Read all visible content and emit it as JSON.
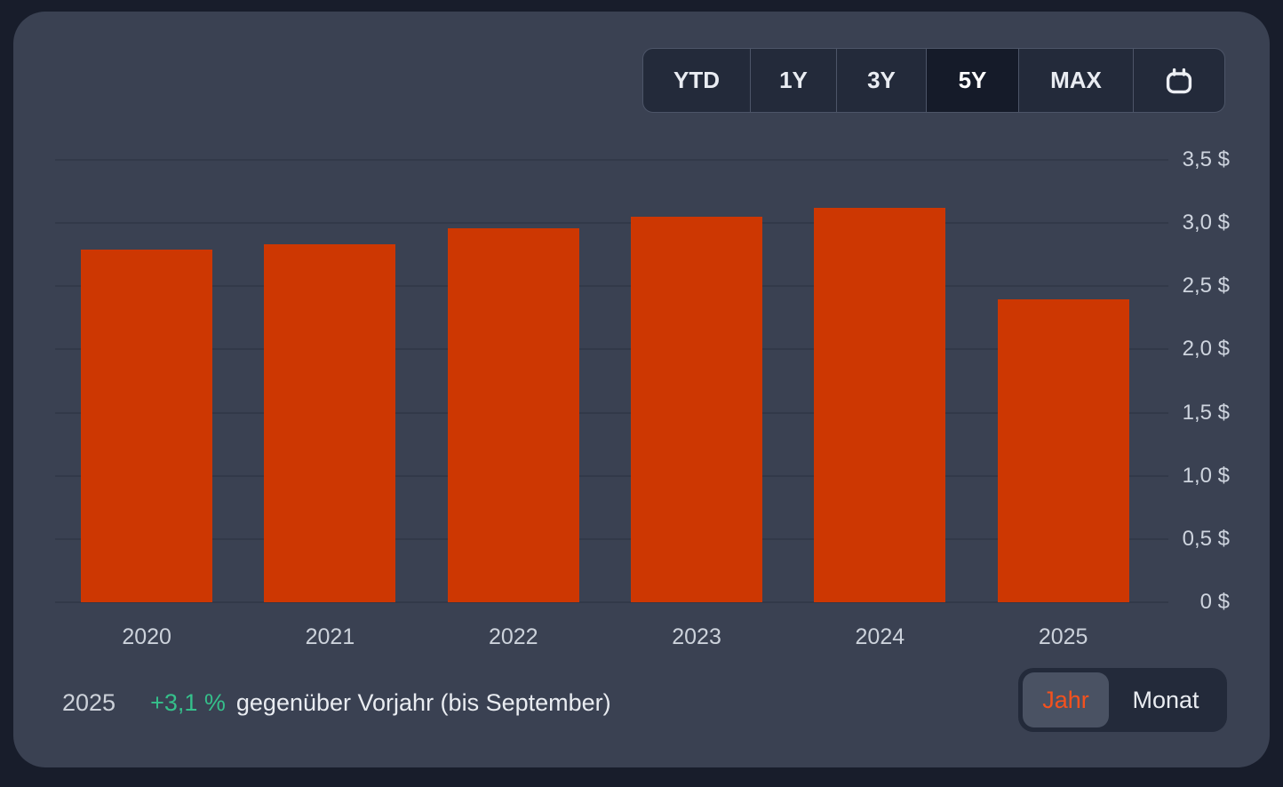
{
  "range_selector": {
    "items": [
      {
        "label": "YTD",
        "selected": false
      },
      {
        "label": "1Y",
        "selected": false
      },
      {
        "label": "3Y",
        "selected": false
      },
      {
        "label": "5Y",
        "selected": true
      },
      {
        "label": "MAX",
        "selected": false
      }
    ],
    "calendar_icon": "calendar-icon"
  },
  "chart_data": {
    "type": "bar",
    "categories": [
      "2020",
      "2021",
      "2022",
      "2023",
      "2024",
      "2025"
    ],
    "values": [
      2.79,
      2.83,
      2.96,
      3.05,
      3.12,
      2.4
    ],
    "unit": "$",
    "bar_color": "#cd3702",
    "ylim": [
      0,
      3.5
    ],
    "grid": true,
    "legend": "none",
    "y_axis_side": "right",
    "y_ticks": [
      {
        "value": 3.5,
        "label": "3,5 $"
      },
      {
        "value": 3.0,
        "label": "3,0 $"
      },
      {
        "value": 2.5,
        "label": "2,5 $"
      },
      {
        "value": 2.0,
        "label": "2,0 $"
      },
      {
        "value": 1.5,
        "label": "1,5 $"
      },
      {
        "value": 1.0,
        "label": "1,0 $"
      },
      {
        "value": 0.5,
        "label": "0,5 $"
      },
      {
        "value": 0,
        "label": "0 $"
      }
    ]
  },
  "footer": {
    "year": "2025",
    "delta": "+3,1 %",
    "delta_color": "#35c08b",
    "note": "gegenüber Vorjahr (bis September)"
  },
  "view_toggle": {
    "active_text_color": "#f5511d",
    "options": [
      {
        "label": "Jahr",
        "selected": true
      },
      {
        "label": "Monat",
        "selected": false
      }
    ]
  }
}
